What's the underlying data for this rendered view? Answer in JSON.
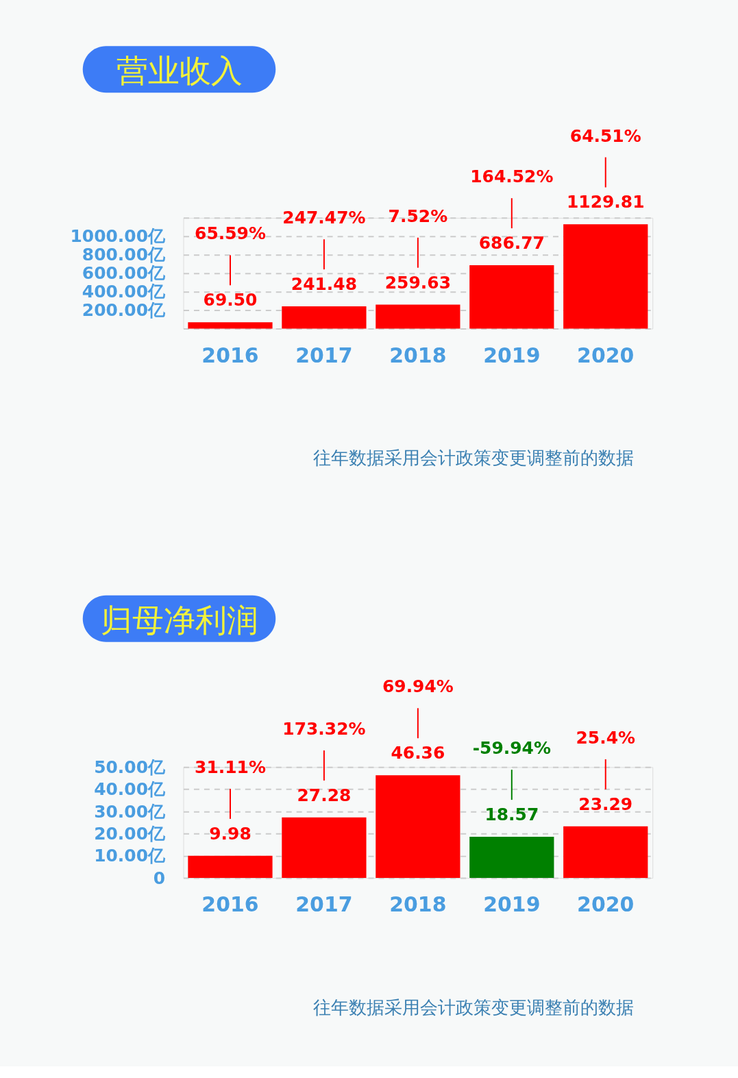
{
  "chart_data": [
    {
      "type": "bar",
      "title": "营业收入",
      "categories": [
        "2016",
        "2017",
        "2018",
        "2019",
        "2020"
      ],
      "values": [
        69.5,
        241.48,
        259.63,
        686.77,
        1129.81
      ],
      "colors": [
        "#ff0000",
        "#ff0000",
        "#ff0000",
        "#ff0000",
        "#ff0000"
      ],
      "value_labels": [
        "69.50",
        "241.48",
        "259.63",
        "686.77",
        "1129.81"
      ],
      "ylim": [
        0,
        1200
      ],
      "yticks": [
        {
          "value": 0,
          "label": null
        },
        {
          "value": 200,
          "label": "200.00亿"
        },
        {
          "value": 400,
          "label": "400.00亿"
        },
        {
          "value": 600,
          "label": "600.00亿"
        },
        {
          "value": 800,
          "label": "800.00亿"
        },
        {
          "value": 1000,
          "label": "1000.00亿"
        },
        {
          "value": 1200,
          "label": null
        }
      ],
      "grid": "y",
      "annotations": [
        {
          "text": "65.59%",
          "x": "2016"
        },
        {
          "text": "247.47%",
          "x": "2017"
        },
        {
          "text": "7.52%",
          "x": "2018"
        },
        {
          "text": "164.52%",
          "x": "2019"
        },
        {
          "text": "64.51%",
          "x": "2020"
        },
        "往年数据采用会计政策变更调整前的数据"
      ]
    },
    {
      "type": "bar",
      "title": "归母净利润",
      "categories": [
        "2016",
        "2017",
        "2018",
        "2019",
        "2020"
      ],
      "values": [
        9.98,
        27.28,
        46.36,
        18.57,
        23.29
      ],
      "colors": [
        "#ff0000",
        "#ff0000",
        "#ff0000",
        "#008000",
        "#ff0000"
      ],
      "data_labels": true,
      "ylim": [
        0,
        50
      ],
      "yticks": [
        0,
        {
          "value": 10,
          "label": "10.00亿"
        },
        {
          "value": 20,
          "label": "20.00亿"
        },
        {
          "value": 30,
          "label": "30.00亿"
        },
        {
          "value": 40,
          "label": "40.00亿"
        },
        {
          "value": 50,
          "label": "50.00亿"
        }
      ],
      "grid": "y",
      "annotations": [
        {
          "text": "31.11%",
          "x": "2016"
        },
        {
          "text": "173.32%",
          "x": "2017"
        },
        {
          "text": "69.94%",
          "x": "2018"
        },
        {
          "text": "-59.94%",
          "x": "2019"
        },
        {
          "text": "25.4%",
          "x": "2020"
        },
        "往年数据采用会计政策变更调整前的数据"
      ]
    }
  ]
}
